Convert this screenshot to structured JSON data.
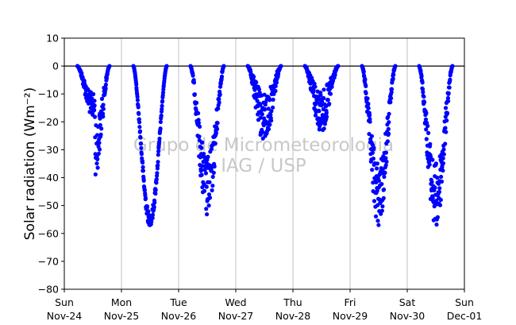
{
  "chart_data": {
    "type": "scatter",
    "ylabel": "Solar radiation (Wm⁻²)",
    "ylim": [
      -80,
      10
    ],
    "yticks": [
      10,
      0,
      -10,
      -20,
      -30,
      -40,
      -50,
      -60,
      -70,
      -80
    ],
    "xlim": [
      "2017-11-24T00:00",
      "2017-12-01T00:00"
    ],
    "xticks": [
      {
        "date": "2017-11-24",
        "day": "Sun",
        "label": "Nov-24"
      },
      {
        "date": "2017-11-25",
        "day": "Mon",
        "label": "Nov-25"
      },
      {
        "date": "2017-11-26",
        "day": "Tue",
        "label": "Nov-26"
      },
      {
        "date": "2017-11-27",
        "day": "Wed",
        "label": "Nov-27"
      },
      {
        "date": "2017-11-28",
        "day": "Thu",
        "label": "Nov-28"
      },
      {
        "date": "2017-11-29",
        "day": "Fri",
        "label": "Nov-29"
      },
      {
        "date": "2017-11-30",
        "day": "Sat",
        "label": "Nov-30"
      },
      {
        "date": "2017-12-01",
        "day": "Sun",
        "label": "Dec-01"
      }
    ],
    "grid": "vertical",
    "zero_line": 0,
    "series_color": "#0000ff",
    "watermark": [
      "Grupo de Micrometeorologia",
      "IAG / USP"
    ],
    "days": [
      {
        "date": "2017-11-24",
        "min_value": -40,
        "daylight_hours": [
          5.5,
          19.0
        ],
        "shape": "cloudy-asymmetric"
      },
      {
        "date": "2017-11-25",
        "min_value": -57,
        "daylight_hours": [
          5.0,
          19.0
        ],
        "shape": "clear"
      },
      {
        "date": "2017-11-26",
        "min_value": -54,
        "daylight_hours": [
          5.0,
          19.0
        ],
        "shape": "clear-noisy"
      },
      {
        "date": "2017-11-27",
        "min_value": -28,
        "daylight_hours": [
          5.0,
          19.0
        ],
        "shape": "cloudy"
      },
      {
        "date": "2017-11-28",
        "min_value": -24,
        "daylight_hours": [
          5.0,
          19.0
        ],
        "shape": "overcast"
      },
      {
        "date": "2017-11-29",
        "min_value": -57,
        "daylight_hours": [
          5.0,
          19.0
        ],
        "shape": "clear-noisy"
      },
      {
        "date": "2017-11-30",
        "min_value": -58,
        "daylight_hours": [
          5.0,
          19.0
        ],
        "shape": "clear-noisy"
      }
    ]
  }
}
